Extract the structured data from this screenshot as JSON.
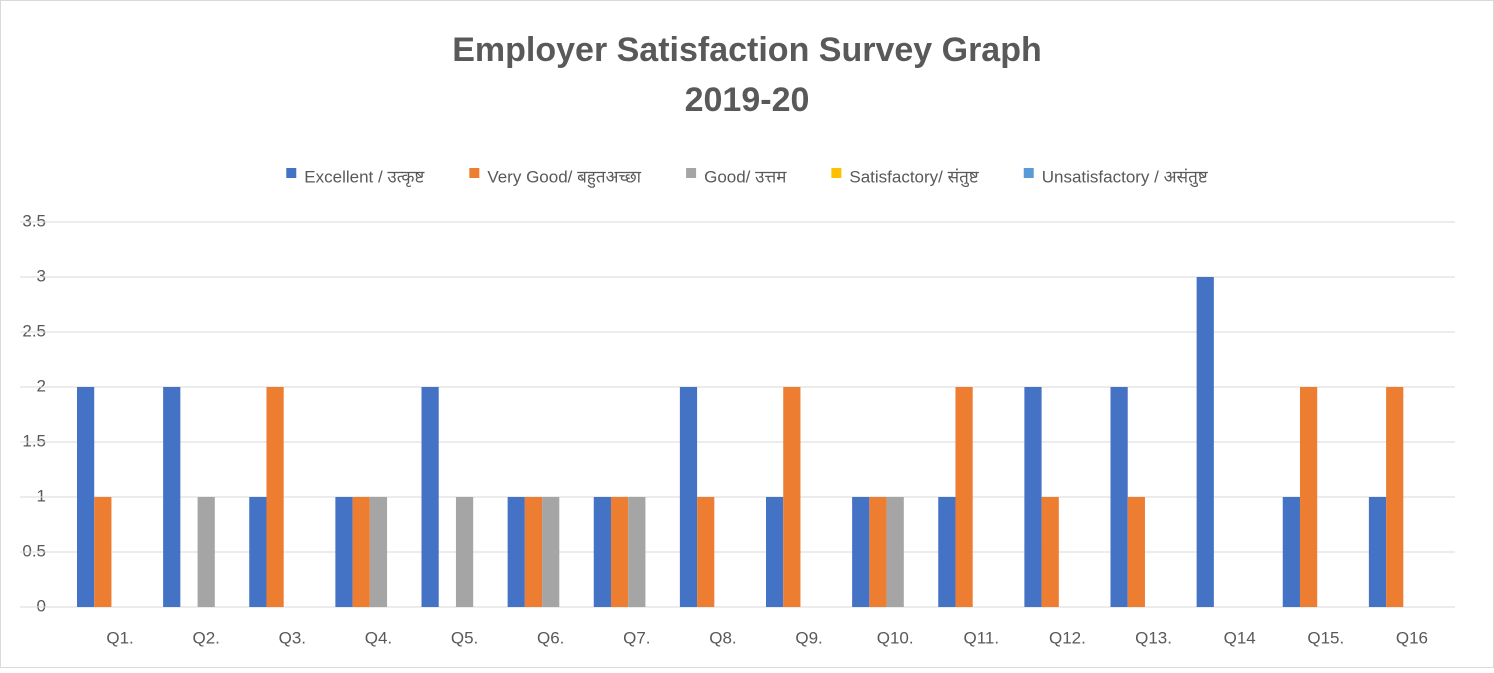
{
  "chart_data": {
    "type": "bar",
    "title": "Employer Satisfaction Survey Graph",
    "subtitle": "2019-20",
    "categories": [
      "Q1.",
      "Q2.",
      "Q3.",
      "Q4.",
      "Q5.",
      "Q6.",
      "Q7.",
      "Q8.",
      "Q9.",
      "Q10.",
      "Q11.",
      "Q12.",
      "Q13.",
      "Q14",
      "Q15.",
      "Q16"
    ],
    "series": [
      {
        "name": "Excellent / उत्कृष्ट",
        "color": "#4472c4",
        "values": [
          2,
          2,
          1,
          1,
          2,
          1,
          1,
          2,
          1,
          1,
          1,
          2,
          2,
          3,
          1,
          1
        ]
      },
      {
        "name": "Very Good/ बहुतअच्छा",
        "color": "#ed7d31",
        "values": [
          1,
          0,
          2,
          1,
          0,
          1,
          1,
          1,
          2,
          1,
          2,
          1,
          1,
          0,
          2,
          2
        ]
      },
      {
        "name": "Good/ उत्तम",
        "color": "#a5a5a5",
        "values": [
          0,
          1,
          0,
          1,
          1,
          1,
          1,
          0,
          0,
          1,
          0,
          0,
          0,
          0,
          0,
          0
        ]
      },
      {
        "name": "Satisfactory/ संतुष्ट",
        "color": "#ffc000",
        "values": [
          0,
          0,
          0,
          0,
          0,
          0,
          0,
          0,
          0,
          0,
          0,
          0,
          0,
          0,
          0,
          0
        ]
      },
      {
        "name": "Unsatisfactory / असंतुष्ट",
        "color": "#5b9bd5",
        "values": [
          0,
          0,
          0,
          0,
          0,
          0,
          0,
          0,
          0,
          0,
          0,
          0,
          0,
          0,
          0,
          0
        ]
      }
    ],
    "ylim": [
      0,
      3.5
    ],
    "yticks": [
      0,
      0.5,
      1,
      1.5,
      2,
      2.5,
      3,
      3.5
    ],
    "grid": true,
    "legend": "top"
  }
}
